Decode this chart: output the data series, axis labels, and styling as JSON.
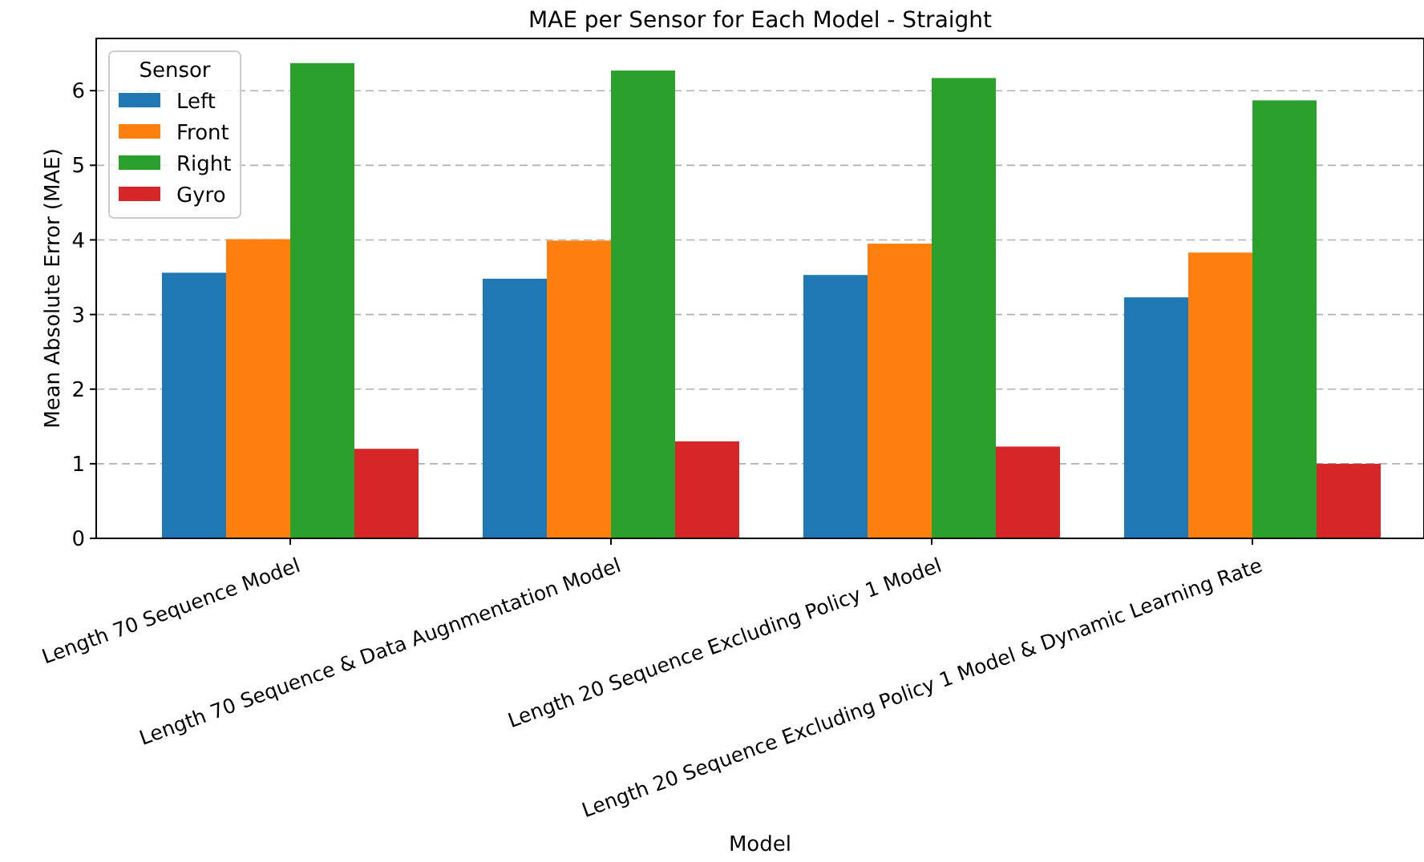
{
  "chart_data": {
    "type": "bar",
    "title": "MAE per Sensor for Each Model - Straight",
    "xlabel": "Model",
    "ylabel": "Mean Absolute Error (MAE)",
    "legend_title": "Sensor",
    "categories": [
      "Length 70 Sequence Model",
      "Length 70 Sequence & Data Augnmentation Model",
      "Length 20 Sequence Excluding Policy 1 Model",
      "Length 20 Sequence Excluding Policy 1 Model & Dynamic Learning Rate"
    ],
    "series": [
      {
        "name": "Left",
        "color": "#1f77b4",
        "values": [
          3.56,
          3.48,
          3.53,
          3.23
        ]
      },
      {
        "name": "Front",
        "color": "#ff7f0e",
        "values": [
          4.01,
          3.99,
          3.95,
          3.83
        ]
      },
      {
        "name": "Right",
        "color": "#2ca02c",
        "values": [
          6.37,
          6.27,
          6.17,
          5.87
        ]
      },
      {
        "name": "Gyro",
        "color": "#d62728",
        "values": [
          1.2,
          1.3,
          1.23,
          1.0
        ]
      }
    ],
    "ylim": [
      0,
      6.7
    ],
    "yticks": [
      0,
      1,
      2,
      3,
      4,
      5,
      6
    ],
    "grid": "y",
    "legend": "top left"
  }
}
